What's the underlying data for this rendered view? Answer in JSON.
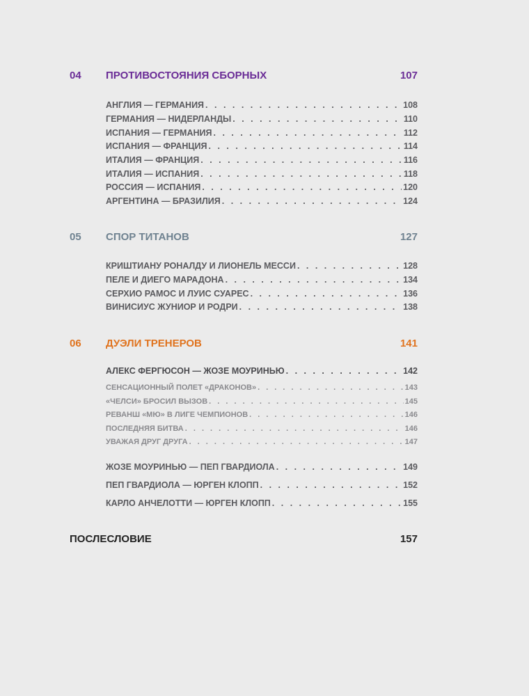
{
  "sections": [
    {
      "number": "04",
      "title": "ПРОТИВОСТОЯНИЯ СБОРНЫХ",
      "page": "107",
      "color": "#6a2c96",
      "entries": [
        {
          "title": "АНГЛИЯ — ГЕРМАНИЯ",
          "page": "108"
        },
        {
          "title": "ГЕРМАНИЯ — НИДЕРЛАНДЫ",
          "page": "110"
        },
        {
          "title": "ИСПАНИЯ — ГЕРМАНИЯ",
          "page": "112"
        },
        {
          "title": "ИСПАНИЯ — ФРАНЦИЯ",
          "page": "114"
        },
        {
          "title": "ИТАЛИЯ — ФРАНЦИЯ",
          "page": "116"
        },
        {
          "title": "ИТАЛИЯ — ИСПАНИЯ",
          "page": "118"
        },
        {
          "title": "РОССИЯ — ИСПАНИЯ",
          "page": "120"
        },
        {
          "title": "АРГЕНТИНА — БРАЗИЛИЯ",
          "page": "124"
        }
      ]
    },
    {
      "number": "05",
      "title": "СПОР ТИТАНОВ",
      "page": "127",
      "color": "#6f8290",
      "entries": [
        {
          "title": "КРИШТИАНУ РОНАЛДУ И ЛИОНЕЛЬ МЕССИ",
          "page": "128"
        },
        {
          "title": "ПЕЛЕ И ДИЕГО МАРАДОНА",
          "page": "134"
        },
        {
          "title": "СЕРХИО РАМОС И ЛУИС СУАРЕС",
          "page": "136"
        },
        {
          "title": "ВИНИСИУС ЖУНИОР И РОДРИ",
          "page": "138"
        }
      ]
    },
    {
      "number": "06",
      "title": "ДУЭЛИ ТРЕНЕРОВ",
      "page": "141",
      "color": "#e0731e",
      "entries": [
        {
          "title": "АЛЕКС ФЕРГЮСОН — ЖОЗЕ МОУРИНЬЮ",
          "page": "142",
          "main": true
        },
        {
          "title": "СЕНСАЦИОННЫЙ ПОЛЕТ «ДРАКОНОВ»",
          "page": "143",
          "sub": true
        },
        {
          "title": "«ЧЕЛСИ» БРОСИЛ ВЫЗОВ",
          "page": "145",
          "sub": true
        },
        {
          "title": "РЕВАНШ «МЮ» В ЛИГЕ ЧЕМПИОНОВ",
          "page": "146",
          "sub": true
        },
        {
          "title": "ПОСЛЕДНЯЯ БИТВА",
          "page": "146",
          "sub": true
        },
        {
          "title": "УВАЖАЯ ДРУГ ДРУГА",
          "page": "147",
          "sub": true
        },
        {
          "title": "ЖОЗЕ МОУРИНЬЮ — ПЕП ГВАРДИОЛА",
          "page": "149"
        },
        {
          "title": "ПЕП ГВАРДИОЛА — ЮРГЕН КЛОПП",
          "page": "152"
        },
        {
          "title": "КАРЛО АНЧЕЛОТТИ — ЮРГЕН КЛОПП",
          "page": "155"
        }
      ]
    }
  ],
  "afterword": {
    "title": "ПОСЛЕСЛОВИЕ",
    "page": "157"
  }
}
